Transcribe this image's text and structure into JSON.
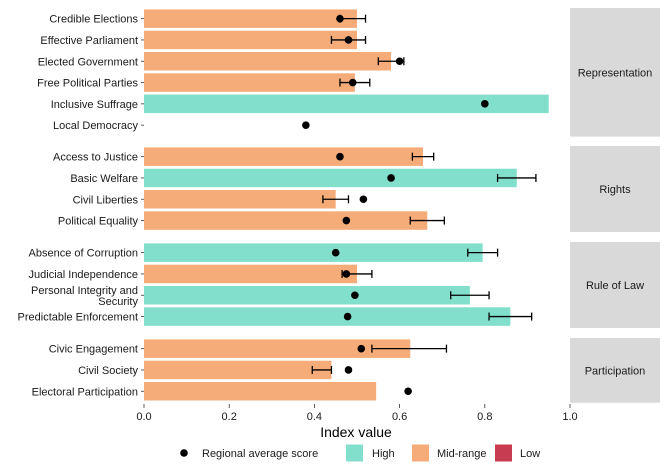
{
  "chart_data": {
    "type": "bar",
    "orientation": "horizontal",
    "xlabel": "Index value",
    "xlim": [
      0,
      1
    ],
    "xticks": [
      "0.0",
      "0.2",
      "0.4",
      "0.6",
      "0.8",
      "1.0"
    ],
    "grid": false,
    "legend_position": "bottom",
    "legend": {
      "point_label": "Regional average score",
      "items": [
        {
          "label": "High",
          "color": "#82dfcc"
        },
        {
          "label": "Mid-range",
          "color": "#f5ac78"
        },
        {
          "label": "Low",
          "color": "#c83c52"
        }
      ]
    },
    "panels": [
      {
        "name": "Representation",
        "rows": [
          {
            "label": "Credible Elections",
            "value": 0.5,
            "category": "Mid-range",
            "avg": 0.46,
            "err": [
              0.46,
              0.52
            ]
          },
          {
            "label": "Effective Parliament",
            "value": 0.5,
            "category": "Mid-range",
            "avg": 0.48,
            "err": [
              0.44,
              0.52
            ]
          },
          {
            "label": "Elected Government",
            "value": 0.58,
            "category": "Mid-range",
            "avg": 0.6,
            "err": [
              0.55,
              0.61
            ]
          },
          {
            "label": "Free Political Parties",
            "value": 0.495,
            "category": "Mid-range",
            "avg": 0.49,
            "err": [
              0.46,
              0.53
            ]
          },
          {
            "label": "Inclusive Suffrage",
            "value": 0.95,
            "category": "High",
            "avg": 0.8,
            "err": null
          },
          {
            "label": "Local Democracy",
            "value": 0.0,
            "category": "Mid-range",
            "avg": 0.38,
            "err": null
          }
        ]
      },
      {
        "name": "Rights",
        "rows": [
          {
            "label": "Access to Justice",
            "value": 0.655,
            "category": "Mid-range",
            "avg": 0.46,
            "err": [
              0.63,
              0.68
            ]
          },
          {
            "label": "Basic Welfare",
            "value": 0.875,
            "category": "High",
            "avg": 0.58,
            "err": [
              0.83,
              0.92
            ]
          },
          {
            "label": "Civil Liberties",
            "value": 0.45,
            "category": "Mid-range",
            "avg": 0.515,
            "err": [
              0.42,
              0.48
            ]
          },
          {
            "label": "Political Equality",
            "value": 0.665,
            "category": "Mid-range",
            "avg": 0.475,
            "err": [
              0.625,
              0.705
            ]
          }
        ]
      },
      {
        "name": "Rule of Law",
        "rows": [
          {
            "label": "Absence of Corruption",
            "value": 0.795,
            "category": "High",
            "avg": 0.45,
            "err": [
              0.76,
              0.83
            ]
          },
          {
            "label": "Judicial Independence",
            "value": 0.5,
            "category": "Mid-range",
            "avg": 0.475,
            "err": [
              0.465,
              0.535
            ]
          },
          {
            "label": "Personal Integrity and\nSecurity",
            "value": 0.765,
            "category": "High",
            "avg": 0.495,
            "err": [
              0.72,
              0.81
            ]
          },
          {
            "label": "Predictable Enforcement",
            "value": 0.86,
            "category": "High",
            "avg": 0.478,
            "err": [
              0.81,
              0.91
            ]
          }
        ]
      },
      {
        "name": "Participation",
        "rows": [
          {
            "label": "Civic Engagement",
            "value": 0.625,
            "category": "Mid-range",
            "avg": 0.51,
            "err": [
              0.535,
              0.71
            ]
          },
          {
            "label": "Civil Society",
            "value": 0.44,
            "category": "Mid-range",
            "avg": 0.48,
            "err": [
              0.395,
              0.44
            ]
          },
          {
            "label": "Electoral Participation",
            "value": 0.545,
            "category": "Mid-range",
            "avg": 0.62,
            "err": null
          }
        ]
      }
    ]
  }
}
